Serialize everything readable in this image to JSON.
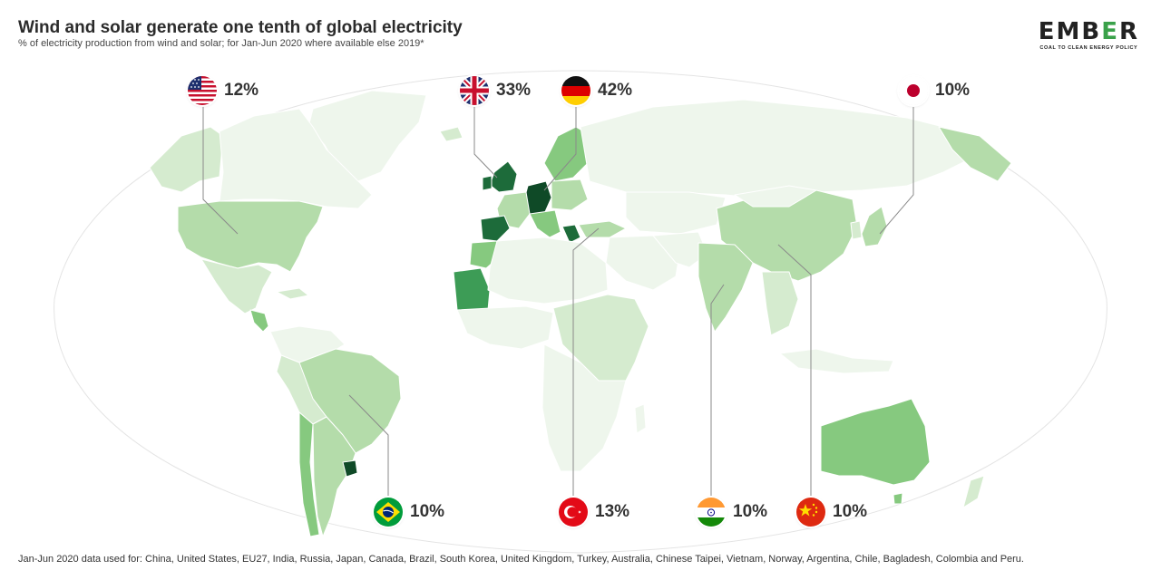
{
  "header": {
    "title": "Wind and solar generate one tenth of global electricity",
    "subtitle": "% of electricity production from wind and solar; for Jan-Jun 2020 where available else 2019*"
  },
  "logo": {
    "word_a": "EMB",
    "word_b": "E",
    "word_c": "R",
    "tagline": "COAL TO CLEAN ENERGY POLICY"
  },
  "legend_colors": {
    "very_low": "#eef6ec",
    "low": "#d5ebcf",
    "medium_low": "#b4dcaa",
    "medium": "#86c97f",
    "high": "#3d9c56",
    "very_high": "#1d6b3a",
    "highest": "#0f4a27",
    "border": "#ffffff",
    "leader_line": "#8a8a8a"
  },
  "callouts": {
    "usa": {
      "value": "12%",
      "flag": "usa-flag-icon"
    },
    "uk": {
      "value": "33%",
      "flag": "uk-flag-icon"
    },
    "germany": {
      "value": "42%",
      "flag": "germany-flag-icon"
    },
    "japan": {
      "value": "10%",
      "flag": "japan-flag-icon"
    },
    "brazil": {
      "value": "10%",
      "flag": "brazil-flag-icon"
    },
    "turkey": {
      "value": "13%",
      "flag": "turkey-flag-icon"
    },
    "india": {
      "value": "10%",
      "flag": "india-flag-icon"
    },
    "china": {
      "value": "10%",
      "flag": "china-flag-icon"
    }
  },
  "footnote": "Jan-Jun 2020 data used for: China, United States, EU27, India, Russia, Japan, Canada, Brazil, South Korea, United Kingdom, Turkey, Australia, Chinese Taipei, Vietnam, Norway, Argentina, Chile, Bagladesh, Colombia and Peru."
}
